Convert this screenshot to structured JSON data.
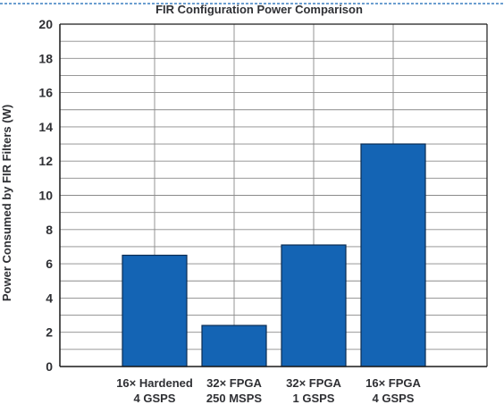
{
  "chart_data": {
    "type": "bar",
    "title": "FIR Configuration Power Comparison",
    "xlabel": "",
    "ylabel": "Power Consumed by FIR Filters (W)",
    "categories": [
      [
        "16× Hardened",
        "4 GSPS"
      ],
      [
        "32× FPGA",
        "250 MSPS"
      ],
      [
        "32× FPGA",
        "1 GSPS"
      ],
      [
        "16× FPGA",
        "4 GSPS"
      ]
    ],
    "values": [
      6.5,
      2.4,
      7.1,
      13.0
    ],
    "ylim": [
      0,
      20
    ],
    "yticks": [
      "0",
      "2",
      "4",
      "6",
      "8",
      "10",
      "12",
      "14",
      "16",
      "18",
      "20"
    ],
    "grid": true,
    "legend": "none",
    "colors": {
      "bar": "#1464b4",
      "bar_edge": "#0b2c52",
      "grid": "#8a8a8a",
      "axis": "#1a1a1a",
      "text": "#2f3034",
      "top_rule": "#1464b4"
    }
  }
}
